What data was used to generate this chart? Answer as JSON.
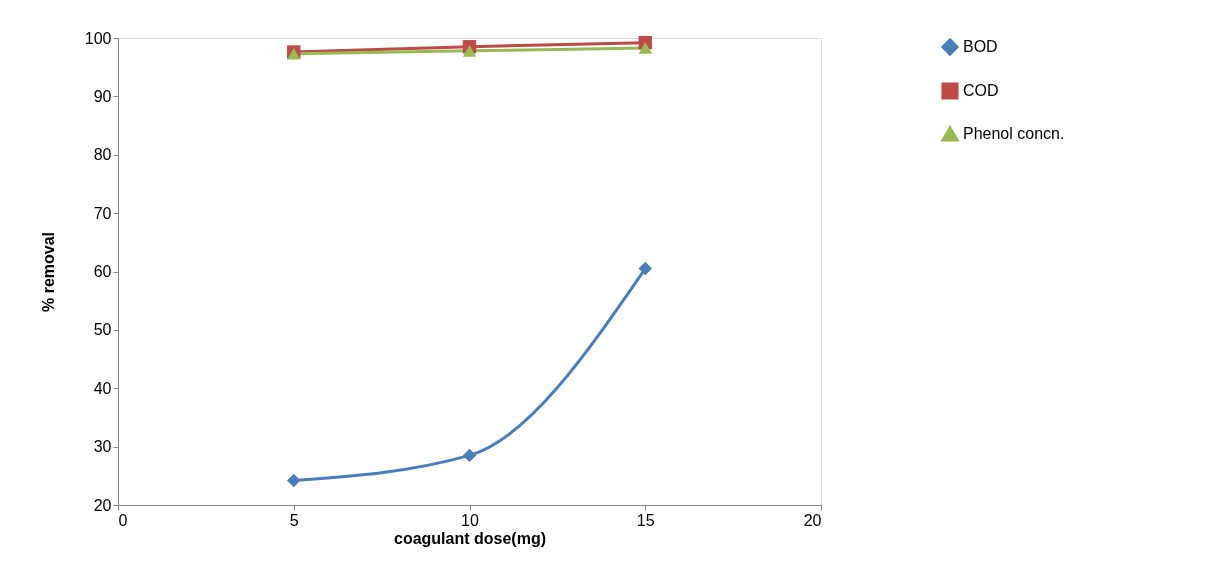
{
  "chart_data": {
    "type": "line",
    "xlabel": "coagulant dose(mg)",
    "ylabel": "% removal",
    "x": [
      5,
      10,
      15
    ],
    "series": [
      {
        "name": "BOD",
        "color": "#4a7ebb",
        "marker": "diamond",
        "values": [
          24.2,
          28.5,
          60.5
        ]
      },
      {
        "name": "COD",
        "color": "#be4b48",
        "marker": "square",
        "values": [
          97.6,
          98.5,
          99.2
        ]
      },
      {
        "name": "Phenol concn.",
        "color": "#98b954",
        "marker": "triangle",
        "values": [
          97.3,
          97.8,
          98.3
        ]
      }
    ],
    "xlim": [
      0,
      20
    ],
    "xticks": [
      0,
      5,
      10,
      15,
      20
    ],
    "ylim": [
      20,
      100
    ],
    "yticks": [
      20,
      30,
      40,
      50,
      60,
      70,
      80,
      90,
      100
    ],
    "grid": false,
    "legend": "right",
    "line_style": "solid"
  }
}
